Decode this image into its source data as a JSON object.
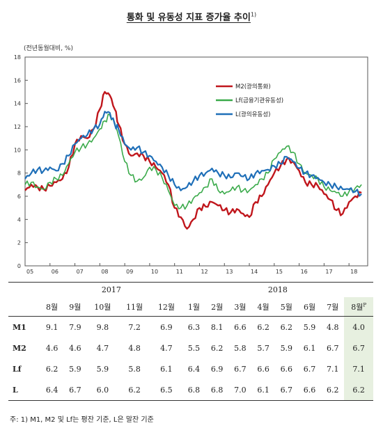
{
  "title": "통화 및 유동성 지표 증가율 추이",
  "title_sup": "1)",
  "chart_data": {
    "type": "line",
    "ylabel": "(전년동월대비, %)",
    "ylim": [
      0,
      18
    ],
    "yticks": [
      0,
      2,
      4,
      6,
      8,
      10,
      12,
      14,
      16,
      18
    ],
    "xlim": [
      2005,
      2018.75
    ],
    "xticks": [
      "05",
      "06",
      "07",
      "08",
      "09",
      "10",
      "11",
      "12",
      "13",
      "14",
      "15",
      "16",
      "17",
      "18"
    ],
    "legend_position": "upper-right",
    "series": [
      {
        "name": "M2(광의통화)",
        "color": "#c0161c",
        "x": [
          2005.0,
          2005.25,
          2005.5,
          2005.75,
          2006.0,
          2006.25,
          2006.5,
          2006.75,
          2007.0,
          2007.25,
          2007.5,
          2007.75,
          2008.0,
          2008.2,
          2008.4,
          2008.6,
          2008.75,
          2009.0,
          2009.25,
          2009.5,
          2009.75,
          2010.0,
          2010.25,
          2010.5,
          2010.75,
          2011.0,
          2011.25,
          2011.5,
          2011.75,
          2012.0,
          2012.25,
          2012.5,
          2012.75,
          2013.0,
          2013.25,
          2013.5,
          2013.75,
          2014.0,
          2014.25,
          2014.5,
          2014.75,
          2015.0,
          2015.25,
          2015.5,
          2015.75,
          2016.0,
          2016.25,
          2016.5,
          2016.75,
          2017.0,
          2017.25,
          2017.5,
          2017.75,
          2018.0,
          2018.25,
          2018.5
        ],
        "y": [
          6.5,
          7.0,
          6.8,
          6.6,
          6.9,
          7.2,
          7.5,
          8.5,
          10.5,
          11.2,
          11.0,
          11.8,
          13.5,
          15.0,
          14.7,
          13.5,
          12.2,
          10.5,
          9.5,
          9.7,
          9.5,
          9.0,
          8.5,
          8.0,
          7.0,
          5.0,
          4.2,
          3.2,
          4.0,
          5.0,
          5.1,
          5.5,
          5.2,
          4.8,
          4.6,
          4.9,
          4.5,
          4.2,
          5.5,
          6.0,
          7.0,
          8.0,
          8.6,
          9.2,
          9.0,
          8.2,
          7.2,
          7.0,
          6.9,
          6.2,
          5.7,
          4.8,
          4.5,
          5.5,
          6.0,
          6.3
        ],
        "points_2017_2018": [
          4.6,
          4.6,
          4.7,
          4.8,
          4.7,
          5.5,
          6.2,
          5.8,
          5.7,
          5.9,
          6.1,
          6.7,
          6.7
        ]
      },
      {
        "name": "Lf(금융기관유동성)",
        "color": "#3aaa4a",
        "x": [
          2005.0,
          2005.25,
          2005.5,
          2005.75,
          2006.0,
          2006.25,
          2006.5,
          2006.75,
          2007.0,
          2007.25,
          2007.5,
          2007.75,
          2008.0,
          2008.2,
          2008.4,
          2008.6,
          2008.75,
          2009.0,
          2009.25,
          2009.5,
          2009.75,
          2010.0,
          2010.25,
          2010.5,
          2010.75,
          2011.0,
          2011.25,
          2011.5,
          2011.75,
          2012.0,
          2012.25,
          2012.5,
          2012.75,
          2013.0,
          2013.25,
          2013.5,
          2013.75,
          2014.0,
          2014.25,
          2014.5,
          2014.75,
          2015.0,
          2015.25,
          2015.5,
          2015.75,
          2016.0,
          2016.25,
          2016.5,
          2016.75,
          2017.0,
          2017.25,
          2017.5,
          2017.75,
          2018.0,
          2018.25,
          2018.5
        ],
        "y": [
          7.0,
          7.2,
          6.8,
          6.6,
          7.2,
          7.5,
          7.8,
          8.8,
          9.8,
          10.2,
          10.5,
          11.0,
          11.8,
          12.5,
          13.0,
          12.3,
          11.2,
          9.0,
          7.8,
          7.3,
          7.6,
          8.5,
          8.3,
          7.6,
          6.5,
          5.2,
          5.0,
          5.2,
          5.8,
          6.3,
          6.8,
          7.5,
          6.5,
          6.2,
          6.5,
          6.8,
          6.5,
          6.5,
          7.0,
          7.5,
          8.0,
          9.2,
          9.8,
          10.3,
          9.8,
          8.8,
          8.0,
          7.8,
          7.5,
          6.8,
          6.5,
          6.3,
          6.0,
          6.4,
          6.7,
          7.0
        ],
        "points_2017_2018": [
          6.2,
          5.9,
          5.9,
          5.8,
          6.1,
          6.4,
          6.9,
          6.7,
          6.6,
          6.6,
          6.7,
          7.1,
          7.1
        ]
      },
      {
        "name": "L(광의유동성)",
        "color": "#1f6fb8",
        "x": [
          2005.0,
          2005.25,
          2005.5,
          2005.75,
          2006.0,
          2006.25,
          2006.5,
          2006.75,
          2007.0,
          2007.25,
          2007.5,
          2007.75,
          2008.0,
          2008.2,
          2008.4,
          2008.6,
          2008.75,
          2009.0,
          2009.25,
          2009.5,
          2009.75,
          2010.0,
          2010.25,
          2010.5,
          2010.75,
          2011.0,
          2011.25,
          2011.5,
          2011.75,
          2012.0,
          2012.25,
          2012.5,
          2012.75,
          2013.0,
          2013.25,
          2013.5,
          2013.75,
          2014.0,
          2014.25,
          2014.5,
          2014.75,
          2015.0,
          2015.25,
          2015.5,
          2015.75,
          2016.0,
          2016.25,
          2016.5,
          2016.75,
          2017.0,
          2017.25,
          2017.5,
          2017.75,
          2018.0,
          2018.25,
          2018.5
        ],
        "y": [
          7.5,
          8.0,
          8.3,
          8.2,
          8.5,
          8.2,
          8.8,
          9.5,
          10.5,
          11.0,
          11.3,
          11.8,
          12.2,
          13.3,
          13.2,
          12.2,
          11.8,
          10.5,
          10.0,
          10.2,
          9.8,
          9.5,
          9.0,
          8.5,
          7.8,
          7.0,
          6.5,
          6.8,
          7.3,
          7.8,
          8.0,
          8.4,
          8.0,
          7.8,
          7.6,
          8.0,
          7.7,
          7.5,
          8.0,
          8.2,
          8.3,
          8.6,
          8.8,
          9.4,
          9.0,
          8.4,
          8.0,
          7.8,
          7.6,
          7.2,
          7.0,
          6.8,
          6.6,
          6.6,
          6.4,
          6.2
        ],
        "points_2017_2018": [
          6.4,
          6.7,
          6.0,
          6.2,
          6.5,
          6.8,
          6.8,
          7.0,
          6.1,
          6.7,
          6.6,
          6.2,
          6.2
        ]
      }
    ]
  },
  "table": {
    "years": [
      "2017",
      "2018"
    ],
    "months": [
      "8월",
      "9월",
      "10월",
      "11월",
      "12월",
      "1월",
      "2월",
      "3월",
      "4월",
      "5월",
      "6월",
      "7월",
      "8월"
    ],
    "last_month_sup": "P",
    "rows": [
      {
        "label": "M1",
        "values": [
          "9.1",
          "7.9",
          "9.8",
          "7.2",
          "6.9",
          "6.3",
          "8.1",
          "6.6",
          "6.2",
          "6.2",
          "5.9",
          "4.8",
          "4.0"
        ]
      },
      {
        "label": "M2",
        "values": [
          "4.6",
          "4.6",
          "4.7",
          "4.8",
          "4.7",
          "5.5",
          "6.2",
          "5.8",
          "5.7",
          "5.9",
          "6.1",
          "6.7",
          "6.7"
        ]
      },
      {
        "label": "Lf",
        "values": [
          "6.2",
          "5.9",
          "5.9",
          "5.8",
          "6.1",
          "6.4",
          "6.9",
          "6.7",
          "6.6",
          "6.6",
          "6.7",
          "7.1",
          "7.1"
        ]
      },
      {
        "label": "L",
        "values": [
          "6.4",
          "6.7",
          "6.0",
          "6.2",
          "6.5",
          "6.8",
          "6.8",
          "7.0",
          "6.1",
          "6.7",
          "6.6",
          "6.2",
          "6.2"
        ]
      }
    ]
  },
  "note": "주: 1) M1, M2 및 Lf는 평잔 기준, L은 말잔 기준"
}
